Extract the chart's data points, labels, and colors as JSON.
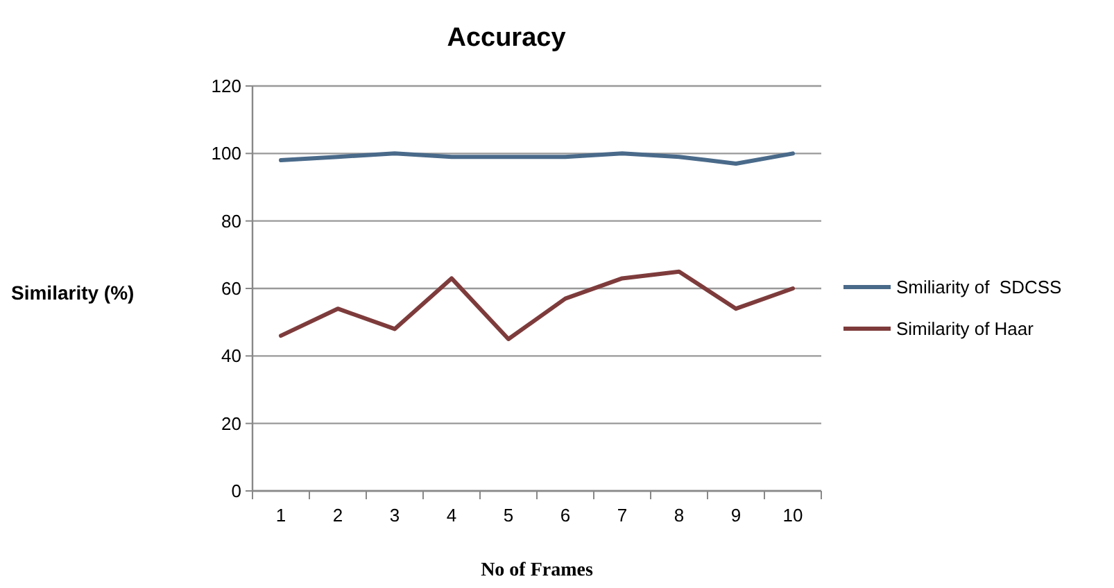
{
  "chart_data": {
    "type": "line",
    "title": "Accuracy",
    "xlabel": "No of Frames",
    "ylabel": "Similarity (%)",
    "categories": [
      "1",
      "2",
      "3",
      "4",
      "5",
      "6",
      "7",
      "8",
      "9",
      "10"
    ],
    "series": [
      {
        "name": "Smiliarity of  SDCSS",
        "color": "#4a6a8a",
        "values": [
          98,
          99,
          100,
          99,
          99,
          99,
          100,
          99,
          97,
          100
        ]
      },
      {
        "name": "Similarity of Haar",
        "color": "#7e3b3b",
        "values": [
          46,
          54,
          48,
          63,
          45,
          57,
          63,
          65,
          54,
          60
        ]
      }
    ],
    "ylim": [
      0,
      120
    ],
    "yticks": [
      0,
      20,
      40,
      60,
      80,
      100,
      120
    ],
    "grid": "y",
    "legend": "right",
    "marker": "none",
    "line_style": "solid"
  }
}
